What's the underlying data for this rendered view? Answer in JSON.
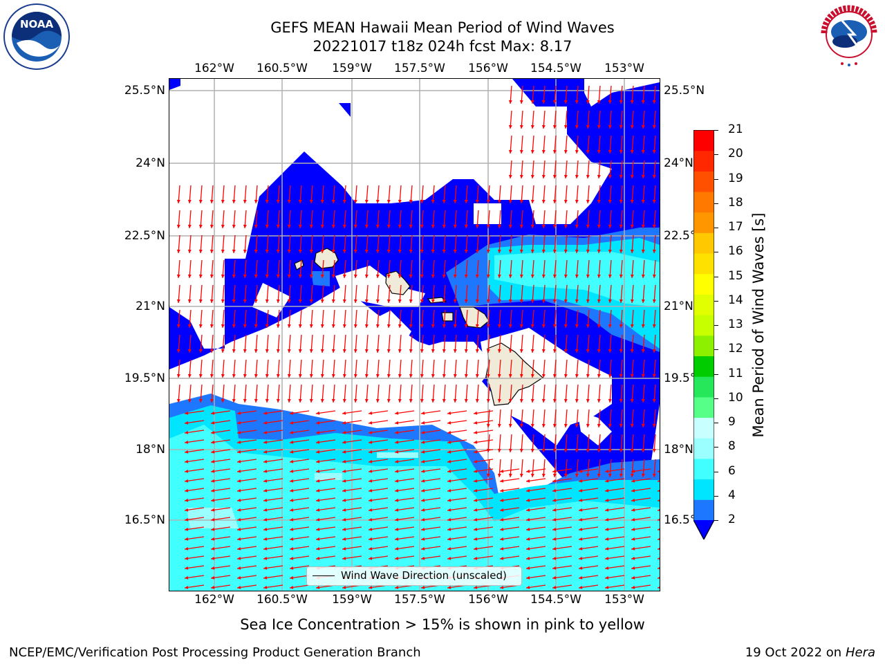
{
  "title": {
    "line1": "GEFS MEAN Hawaii Mean Period of Wind Waves",
    "line2": "20221017 t18z 024h fcst   Max: 8.17"
  },
  "axes": {
    "lon_ticks": [
      "162°W",
      "160.5°W",
      "159°W",
      "157.5°W",
      "156°W",
      "154.5°W",
      "153°W"
    ],
    "lat_ticks": [
      "25.5°N",
      "24°N",
      "22.5°N",
      "21°N",
      "19.5°N",
      "18°N",
      "16.5°N"
    ]
  },
  "legend": {
    "label": "Wind Wave Direction (unscaled)"
  },
  "colorbar": {
    "label": "Mean Period of Wind Waves [s]",
    "ticks": [
      "2",
      "4",
      "6",
      "8",
      "9",
      "10",
      "11",
      "12",
      "13",
      "14",
      "15",
      "16",
      "17",
      "18",
      "19",
      "20",
      "21"
    ],
    "colors": [
      "#1e78ff",
      "#00e5ff",
      "#41ffff",
      "#9cffff",
      "#c8ffff",
      "#55ff88",
      "#26e65a",
      "#00cc00",
      "#8cf000",
      "#c8ff00",
      "#e1ff00",
      "#ffff00",
      "#ffe100",
      "#ffc800",
      "#ff9600",
      "#ff7800",
      "#ff5000",
      "#ff2800",
      "#ff0000"
    ],
    "under_color": "#0000ff"
  },
  "caption": "Sea Ice Concentration > 15% is shown in pink to yellow",
  "footer": {
    "left": "NCEP/EMC/Verification Post Processing Product Generation Branch",
    "date": "19 Oct 2022 on ",
    "machine": "Hera"
  },
  "logos": {
    "left": "NOAA",
    "right": "NATIONAL WEATHER SERVICE"
  },
  "colors": {
    "arrow": "#ff0000",
    "land": "#efebd8",
    "grid": "#b0b0b0"
  }
}
